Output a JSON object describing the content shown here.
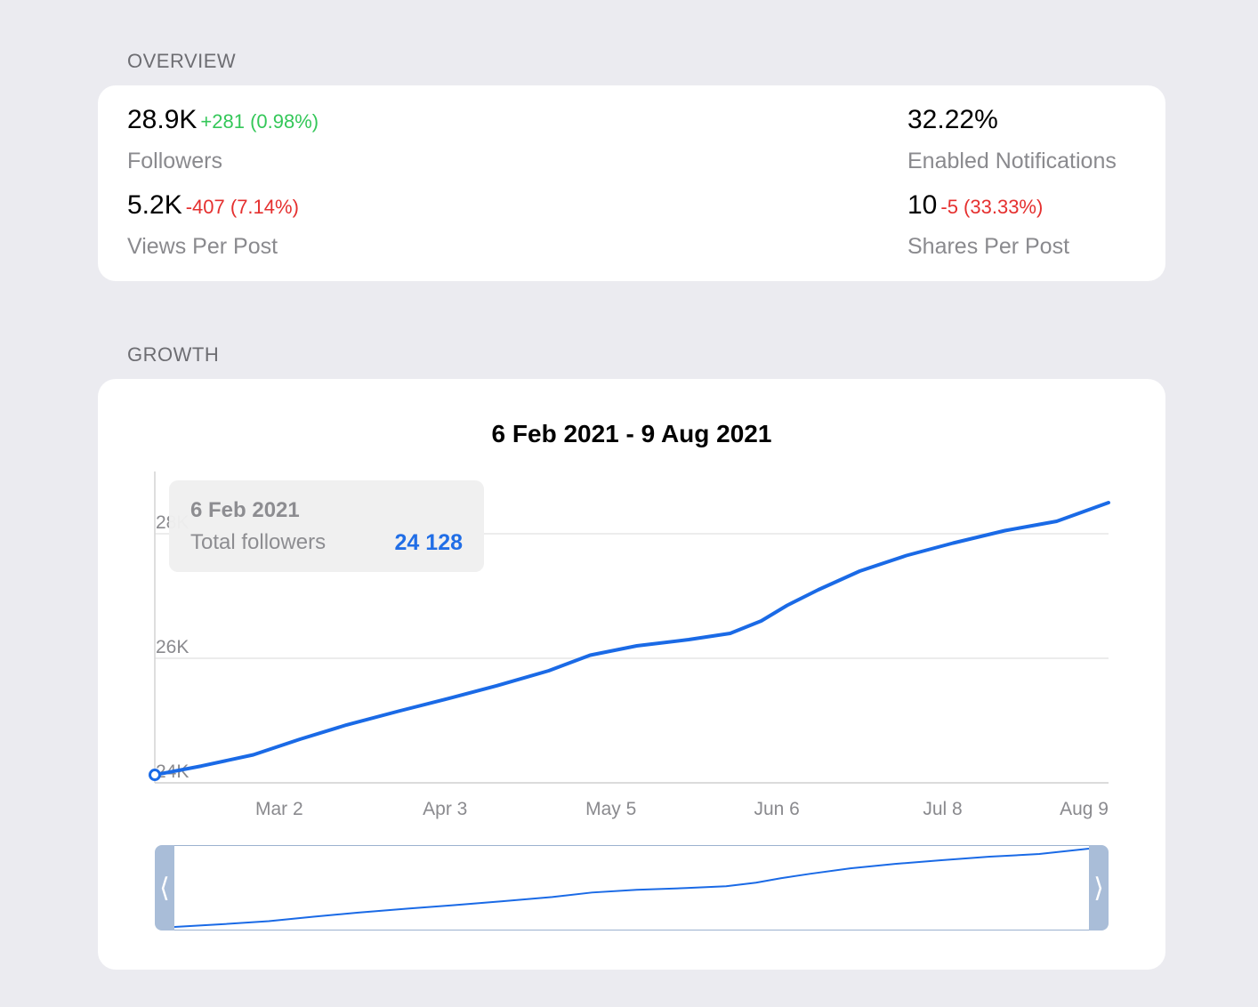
{
  "overview": {
    "header": "OVERVIEW",
    "stats": {
      "followers": {
        "value": "28.9K",
        "delta": "+281 (0.98%)",
        "label": "Followers"
      },
      "views": {
        "value": "5.2K",
        "delta": "-407 (7.14%)",
        "label": "Views Per Post"
      },
      "notifications": {
        "value": "32.22%",
        "label": "Enabled Notifications"
      },
      "shares": {
        "value": "10",
        "delta": "-5 (33.33%)",
        "label": "Shares Per Post"
      }
    }
  },
  "growth": {
    "header": "GROWTH",
    "tooltip": {
      "date": "6 Feb 2021",
      "label": "Total followers",
      "value": "24 128"
    },
    "navigator": {
      "left_handle": "⟨",
      "right_handle": "⟩"
    }
  },
  "colors": {
    "line": "#1a6ae6",
    "positive": "#34c759",
    "negative": "#e5302f"
  },
  "chart_data": {
    "type": "line",
    "title": "6 Feb 2021 - 9 Aug 2021",
    "xlabel": "",
    "ylabel": "",
    "x_tick_labels": [
      "Mar 2",
      "Apr 3",
      "May 5",
      "Jun 6",
      "Jul 8",
      "Aug 9"
    ],
    "y_tick_labels": [
      "24K",
      "26K",
      "28K"
    ],
    "xlim": [
      "2021-02-06",
      "2021-08-09"
    ],
    "ylim": [
      24000,
      29000
    ],
    "grid": true,
    "series": [
      {
        "name": "Total followers",
        "x": [
          "2021-02-06",
          "2021-02-15",
          "2021-02-25",
          "2021-03-06",
          "2021-03-15",
          "2021-03-25",
          "2021-04-03",
          "2021-04-13",
          "2021-04-23",
          "2021-05-01",
          "2021-05-10",
          "2021-05-20",
          "2021-05-28",
          "2021-06-03",
          "2021-06-08",
          "2021-06-14",
          "2021-06-22",
          "2021-07-01",
          "2021-07-10",
          "2021-07-20",
          "2021-07-30",
          "2021-08-09"
        ],
        "values": [
          24128,
          24270,
          24450,
          24700,
          24930,
          25150,
          25340,
          25560,
          25800,
          26050,
          26200,
          26300,
          26400,
          26600,
          26850,
          27100,
          27400,
          27650,
          27850,
          28050,
          28200,
          28500
        ]
      }
    ]
  }
}
